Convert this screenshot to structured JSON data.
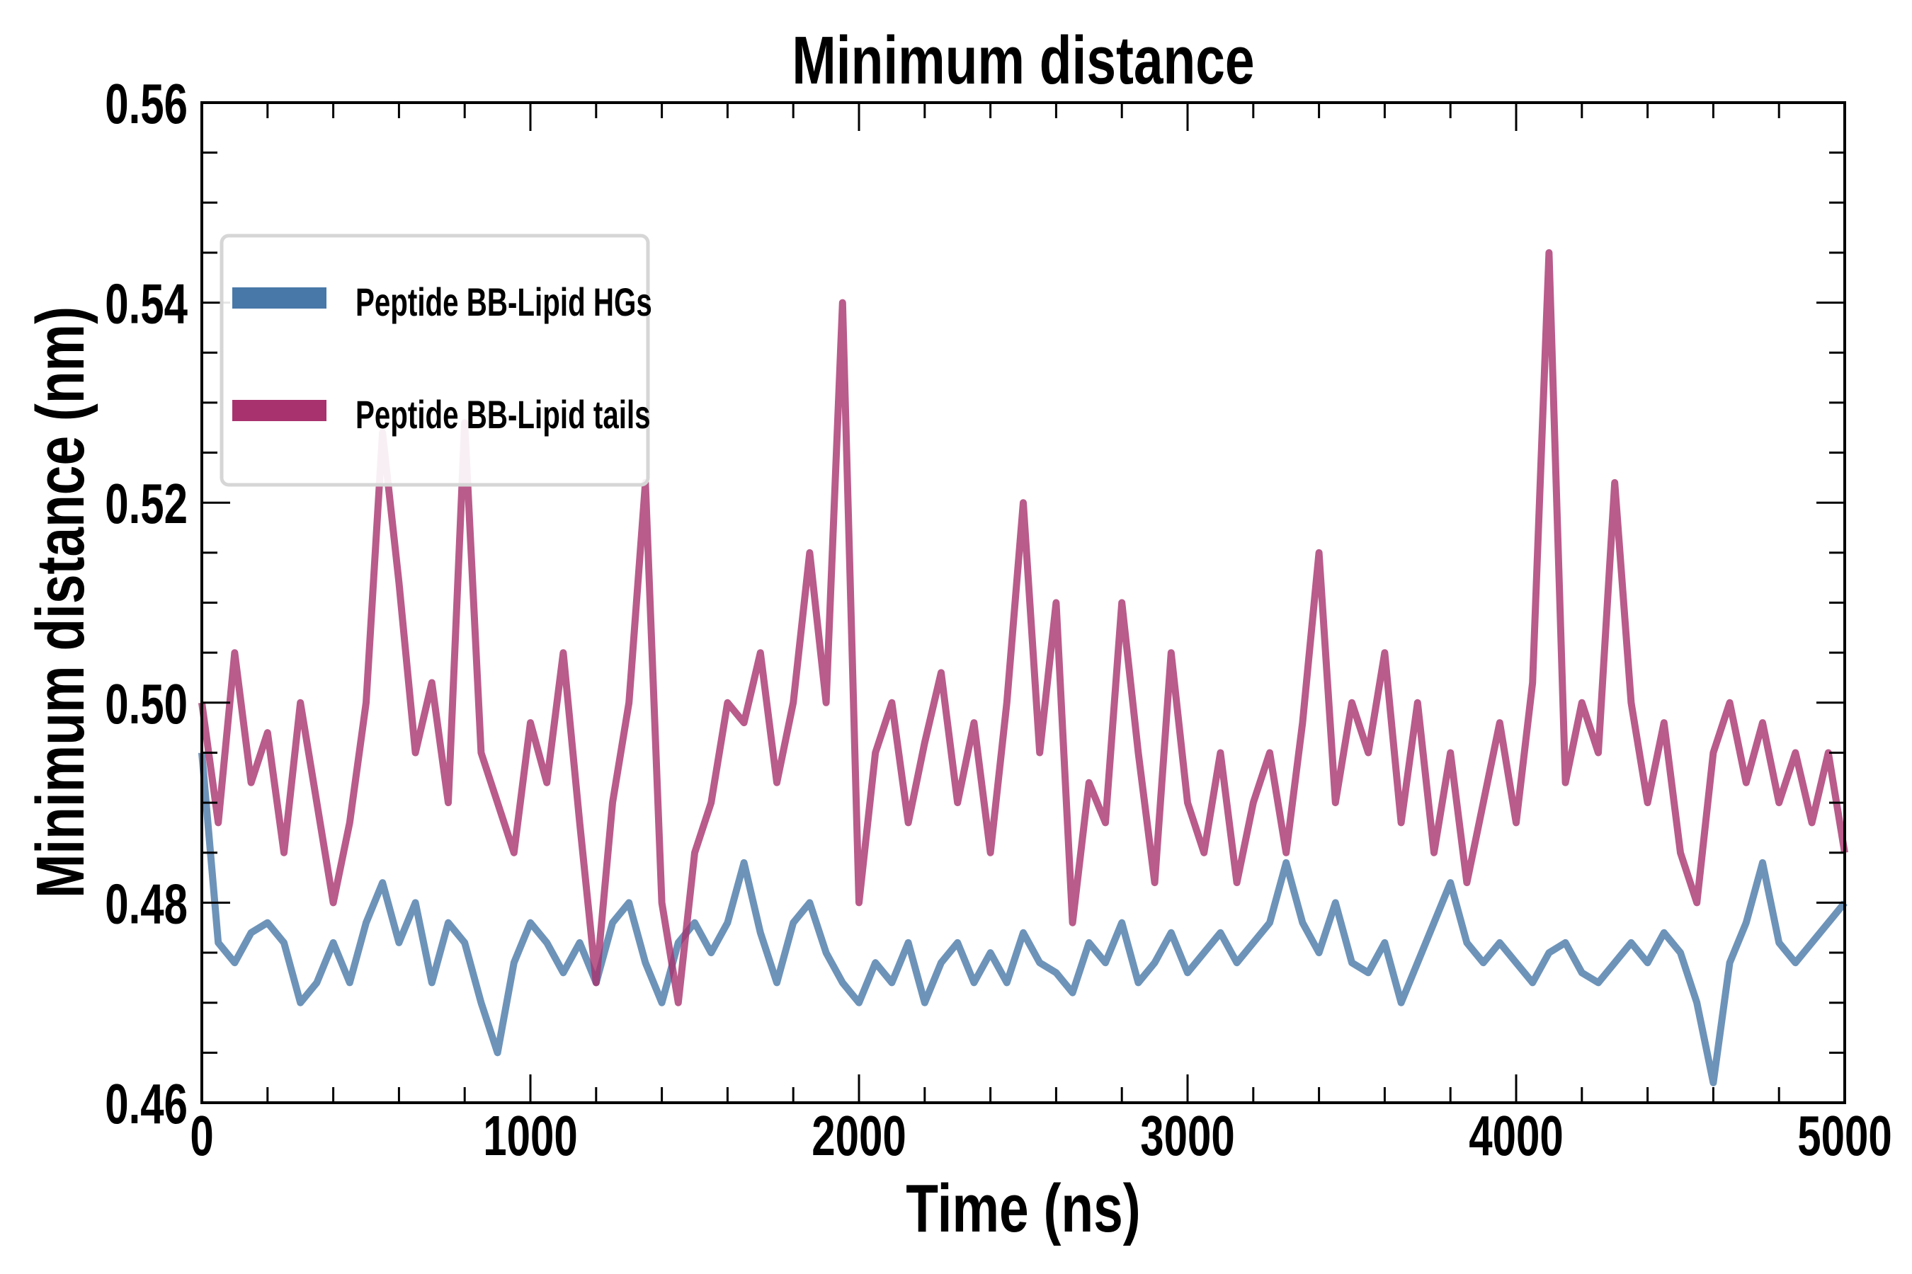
{
  "chart_data": {
    "type": "line",
    "title": "Minimum distance",
    "xlabel": "Time (ns)",
    "ylabel": "Minimum distance (nm)",
    "xlim": [
      0,
      5000
    ],
    "ylim": [
      0.46,
      0.56
    ],
    "xticks": [
      0,
      1000,
      2000,
      3000,
      4000,
      5000
    ],
    "xtick_labels": [
      "0",
      "1000",
      "2000",
      "3000",
      "4000",
      "5000"
    ],
    "yticks": [
      0.46,
      0.48,
      0.5,
      0.52,
      0.54,
      0.56
    ],
    "ytick_labels": [
      "0.46",
      "0.48",
      "0.50",
      "0.52",
      "0.54",
      "0.56"
    ],
    "x_minor_step": 200,
    "y_minor_step": 0.005,
    "grid": false,
    "legend_placement": "top-left",
    "x_step": 50,
    "series": [
      {
        "name": "Peptide BB-Lipid HGs",
        "color": "#4878a8",
        "values": [
          0.495,
          0.476,
          0.474,
          0.477,
          0.478,
          0.476,
          0.47,
          0.472,
          0.476,
          0.472,
          0.478,
          0.482,
          0.476,
          0.48,
          0.472,
          0.478,
          0.476,
          0.47,
          0.465,
          0.474,
          0.478,
          0.476,
          0.473,
          0.476,
          0.472,
          0.478,
          0.48,
          0.474,
          0.47,
          0.476,
          0.478,
          0.475,
          0.478,
          0.484,
          0.477,
          0.472,
          0.478,
          0.48,
          0.475,
          0.472,
          0.47,
          0.474,
          0.472,
          0.476,
          0.47,
          0.474,
          0.476,
          0.472,
          0.475,
          0.472,
          0.477,
          0.474,
          0.473,
          0.471,
          0.476,
          0.474,
          0.478,
          0.472,
          0.474,
          0.477,
          0.473,
          0.475,
          0.477,
          0.474,
          0.476,
          0.478,
          0.484,
          0.478,
          0.475,
          0.48,
          0.474,
          0.473,
          0.476,
          0.47,
          0.474,
          0.478,
          0.482,
          0.476,
          0.474,
          0.476,
          0.474,
          0.472,
          0.475,
          0.476,
          0.473,
          0.472,
          0.474,
          0.476,
          0.474,
          0.477,
          0.475,
          0.47,
          0.462,
          0.474,
          0.478,
          0.484,
          0.476,
          0.474,
          0.476,
          0.478,
          0.48
        ]
      },
      {
        "name": "Peptide BB-Lipid tails",
        "color": "#a8326e",
        "values": [
          0.5,
          0.488,
          0.505,
          0.492,
          0.497,
          0.485,
          0.5,
          0.49,
          0.48,
          0.488,
          0.5,
          0.527,
          0.512,
          0.495,
          0.502,
          0.49,
          0.528,
          0.495,
          0.49,
          0.485,
          0.498,
          0.492,
          0.505,
          0.488,
          0.472,
          0.49,
          0.5,
          0.522,
          0.48,
          0.47,
          0.485,
          0.49,
          0.5,
          0.498,
          0.505,
          0.492,
          0.5,
          0.515,
          0.5,
          0.54,
          0.48,
          0.495,
          0.5,
          0.488,
          0.496,
          0.503,
          0.49,
          0.498,
          0.485,
          0.5,
          0.52,
          0.495,
          0.51,
          0.478,
          0.492,
          0.488,
          0.51,
          0.495,
          0.482,
          0.505,
          0.49,
          0.485,
          0.495,
          0.482,
          0.49,
          0.495,
          0.485,
          0.498,
          0.515,
          0.49,
          0.5,
          0.495,
          0.505,
          0.488,
          0.5,
          0.485,
          0.495,
          0.482,
          0.49,
          0.498,
          0.488,
          0.502,
          0.545,
          0.492,
          0.5,
          0.495,
          0.522,
          0.5,
          0.49,
          0.498,
          0.485,
          0.48,
          0.495,
          0.5,
          0.492,
          0.498,
          0.49,
          0.495,
          0.488,
          0.495,
          0.485
        ]
      }
    ]
  }
}
